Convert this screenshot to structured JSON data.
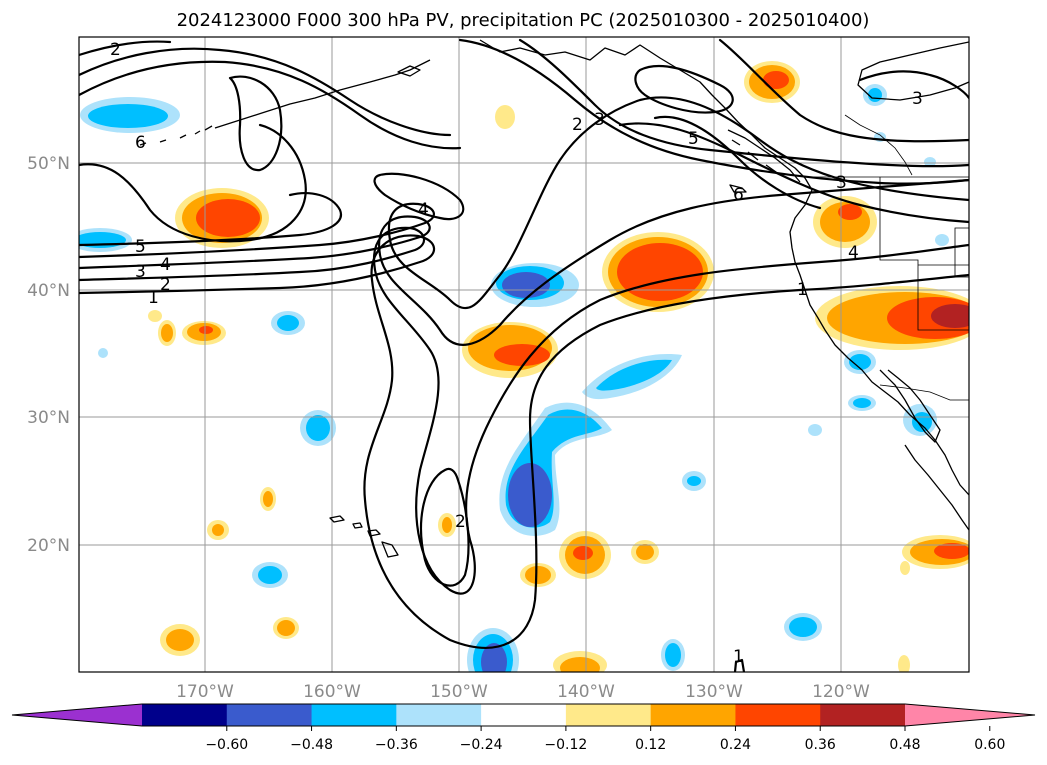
{
  "title": "2024123000 F000 300 hPa PV, precipitation PC (2025010300 - 2025010400)",
  "lat_labels": [
    "50°N",
    "40°N",
    "30°N",
    "20°N"
  ],
  "lon_labels": [
    "170°W",
    "160°W",
    "150°W",
    "140°W",
    "130°W",
    "120°W"
  ],
  "colorbar": {
    "colors": [
      "#9b30d0",
      "#00008b",
      "#3a5bcd",
      "#00bfff",
      "#ade2fb",
      "#ffffff",
      "#ffe98a",
      "#ffa500",
      "#ff4500",
      "#b22222",
      "#ff85a8"
    ],
    "tick_labels": [
      "-0.60",
      "-0.48",
      "-0.36",
      "-0.24",
      "-0.12",
      "0.12",
      "0.24",
      "0.36",
      "0.48",
      "0.60"
    ]
  },
  "contour_labels": [
    "1",
    "2",
    "3",
    "4",
    "5",
    "6"
  ],
  "colors": {
    "pos_light": "#ffe98a",
    "pos_mid": "#ffa500",
    "pos_high": "#ff4500",
    "pos_max": "#b22222",
    "neg_light": "#ade2fb",
    "neg_mid": "#00bfff",
    "neg_high": "#3a5bcd"
  }
}
